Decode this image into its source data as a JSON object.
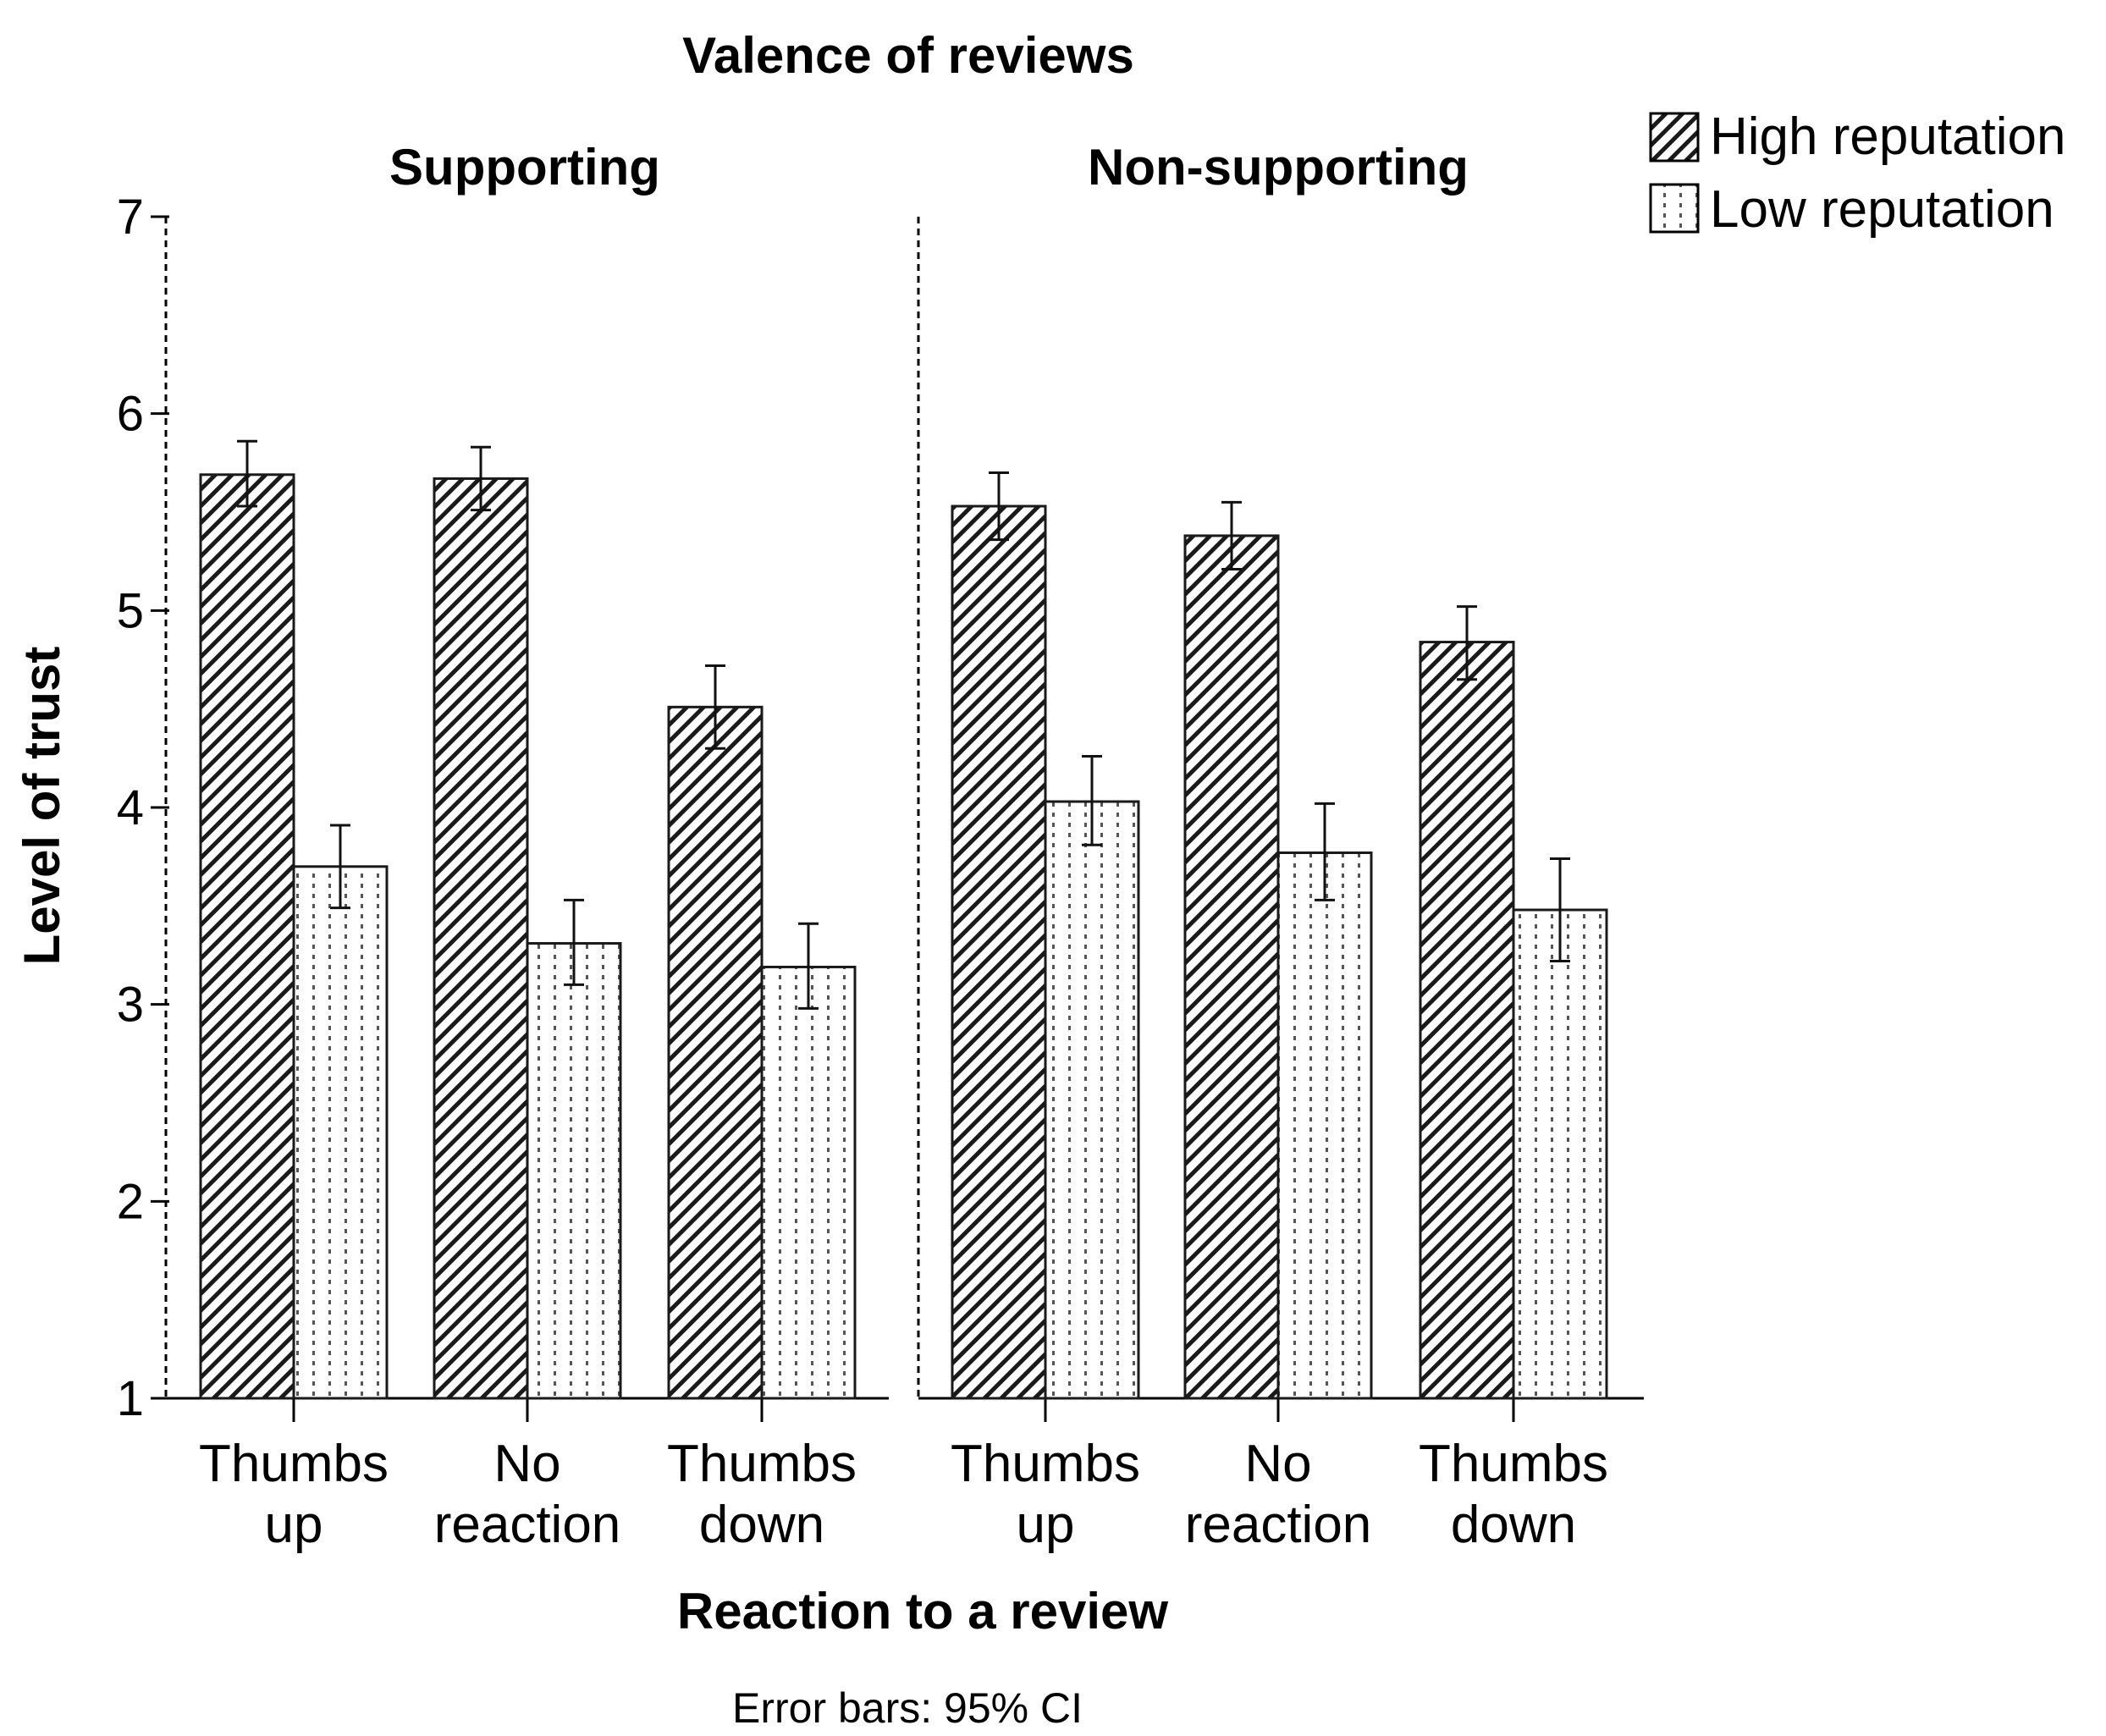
{
  "chart_data": {
    "type": "bar",
    "title": "Valence of reviews",
    "xlabel": "Reaction to a review",
    "ylabel": "Level of trust",
    "ylim": [
      1,
      7
    ],
    "yticks": [
      "1",
      "2",
      "3",
      "4",
      "5",
      "6",
      "7"
    ],
    "note": "Error bars: 95% CI",
    "legend_position": "top-right",
    "grid": false,
    "panels": [
      {
        "title": "Supporting",
        "categories": [
          [
            "Thumbs",
            "up"
          ],
          [
            "No",
            "reaction"
          ],
          [
            "Thumbs",
            "down"
          ]
        ],
        "series": [
          {
            "name": "High reputation",
            "values": [
              5.69,
              5.67,
              4.51
            ],
            "ci_low": [
              5.53,
              5.51,
              4.3
            ],
            "ci_high": [
              5.86,
              5.83,
              4.72
            ]
          },
          {
            "name": "Low reputation",
            "values": [
              3.7,
              3.31,
              3.19
            ],
            "ci_low": [
              3.49,
              3.1,
              2.98
            ],
            "ci_high": [
              3.91,
              3.53,
              3.41
            ]
          }
        ]
      },
      {
        "title": "Non-supporting",
        "categories": [
          [
            "Thumbs",
            "up"
          ],
          [
            "No",
            "reaction"
          ],
          [
            "Thumbs",
            "down"
          ]
        ],
        "series": [
          {
            "name": "High reputation",
            "values": [
              5.53,
              5.38,
              4.84
            ],
            "ci_low": [
              5.36,
              5.21,
              4.65
            ],
            "ci_high": [
              5.7,
              5.55,
              5.02
            ]
          },
          {
            "name": "Low reputation",
            "values": [
              4.03,
              3.77,
              3.48
            ],
            "ci_low": [
              3.81,
              3.53,
              3.22
            ],
            "ci_high": [
              4.26,
              4.02,
              3.74
            ]
          }
        ]
      }
    ]
  }
}
